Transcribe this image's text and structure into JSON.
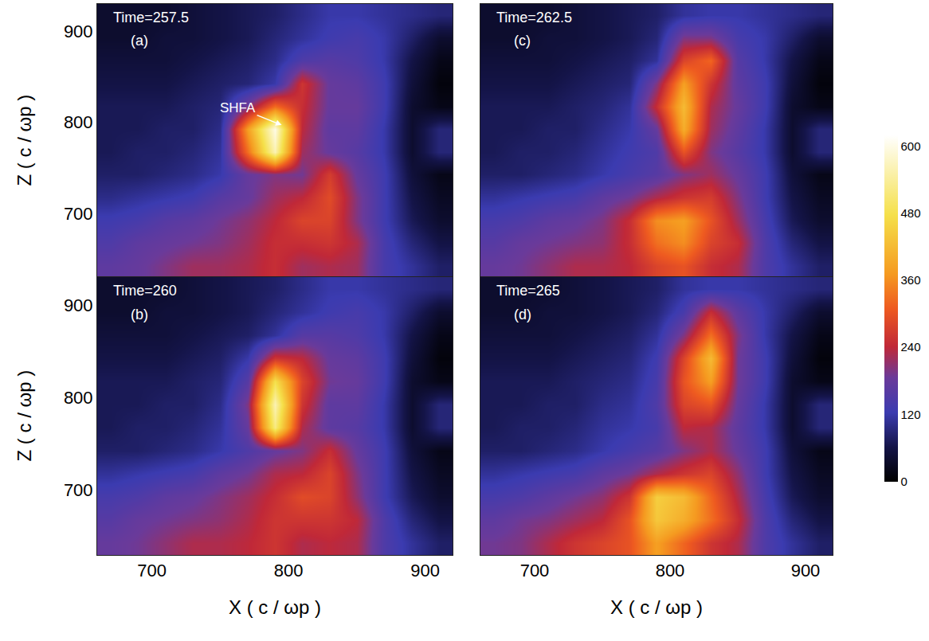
{
  "chart_data": [
    {
      "type": "heatmap",
      "title": "Time=257.5",
      "panel": "(a)",
      "ylabel": "Z ( c / ωp )",
      "tick_labels": "y",
      "x": [
        670,
        690,
        710,
        730,
        750,
        770,
        790,
        810,
        830,
        850,
        870,
        890,
        910
      ],
      "y": [
        642.5,
        667.5,
        692.5,
        717.5,
        742.5,
        767.5,
        792.5,
        817.5,
        842.5,
        867.5,
        892.5,
        917.5
      ],
      "xlim": [
        660,
        920
      ],
      "ylim": [
        630,
        930
      ],
      "xticks": [
        700,
        800,
        900
      ],
      "yticks": [
        700,
        800,
        900
      ],
      "color_range": [
        0,
        620
      ],
      "color_ticks": [
        0,
        120,
        240,
        360,
        480,
        600
      ],
      "annotations": [
        {
          "text": "SHFA",
          "x": 795,
          "y": 797
        }
      ],
      "z": [
        [
          170,
          180,
          200,
          220,
          220,
          230,
          250,
          220,
          230,
          220,
          140,
          110,
          80
        ],
        [
          150,
          170,
          180,
          190,
          200,
          220,
          250,
          250,
          260,
          230,
          140,
          90,
          60
        ],
        [
          130,
          140,
          160,
          170,
          190,
          210,
          240,
          280,
          280,
          200,
          130,
          70,
          40
        ],
        [
          100,
          110,
          120,
          130,
          160,
          180,
          220,
          240,
          290,
          200,
          130,
          60,
          30
        ],
        [
          80,
          80,
          90,
          100,
          120,
          180,
          200,
          190,
          270,
          180,
          130,
          50,
          20
        ],
        [
          70,
          80,
          80,
          90,
          110,
          330,
          560,
          220,
          180,
          160,
          120,
          40,
          90
        ],
        [
          70,
          70,
          80,
          80,
          100,
          380,
          600,
          240,
          170,
          170,
          120,
          40,
          90
        ],
        [
          70,
          70,
          70,
          80,
          90,
          200,
          330,
          250,
          180,
          180,
          130,
          40,
          20
        ],
        [
          60,
          60,
          60,
          70,
          80,
          90,
          120,
          260,
          180,
          170,
          130,
          50,
          10
        ],
        [
          50,
          50,
          50,
          60,
          70,
          80,
          100,
          150,
          160,
          150,
          120,
          60,
          20
        ],
        [
          40,
          40,
          50,
          50,
          60,
          70,
          90,
          110,
          130,
          140,
          120,
          80,
          40
        ],
        [
          40,
          40,
          40,
          50,
          60,
          70,
          80,
          100,
          120,
          120,
          110,
          100,
          90
        ]
      ]
    },
    {
      "type": "heatmap",
      "title": "Time=260",
      "panel": "(b)",
      "xlabel": "X ( c / ωp )",
      "ylabel": "Z ( c / ωp )",
      "tick_labels": true,
      "x": [
        670,
        690,
        710,
        730,
        750,
        770,
        790,
        810,
        830,
        850,
        870,
        890,
        910
      ],
      "y": [
        642.5,
        667.5,
        692.5,
        717.5,
        742.5,
        767.5,
        792.5,
        817.5,
        842.5,
        867.5,
        892.5,
        917.5
      ],
      "xlim": [
        660,
        920
      ],
      "ylim": [
        630,
        930
      ],
      "xticks": [
        700,
        800,
        900
      ],
      "yticks": [
        700,
        800,
        900
      ],
      "color_range": [
        0,
        620
      ],
      "z": [
        [
          180,
          190,
          210,
          230,
          230,
          240,
          260,
          230,
          240,
          230,
          150,
          110,
          80
        ],
        [
          160,
          180,
          190,
          200,
          210,
          230,
          260,
          260,
          260,
          240,
          150,
          90,
          60
        ],
        [
          140,
          150,
          170,
          180,
          200,
          220,
          250,
          290,
          280,
          210,
          130,
          70,
          40
        ],
        [
          110,
          120,
          130,
          140,
          170,
          190,
          230,
          240,
          280,
          200,
          130,
          60,
          30
        ],
        [
          80,
          80,
          90,
          100,
          120,
          150,
          180,
          200,
          250,
          180,
          130,
          50,
          20
        ],
        [
          70,
          80,
          80,
          90,
          110,
          180,
          520,
          230,
          170,
          160,
          120,
          40,
          90
        ],
        [
          70,
          70,
          80,
          80,
          100,
          200,
          560,
          260,
          170,
          170,
          120,
          40,
          90
        ],
        [
          70,
          70,
          70,
          80,
          90,
          160,
          480,
          280,
          190,
          180,
          130,
          40,
          20
        ],
        [
          60,
          60,
          60,
          70,
          80,
          120,
          260,
          240,
          180,
          170,
          130,
          50,
          10
        ],
        [
          50,
          50,
          50,
          60,
          70,
          80,
          110,
          160,
          160,
          150,
          120,
          60,
          20
        ],
        [
          40,
          40,
          50,
          50,
          60,
          70,
          90,
          110,
          130,
          140,
          120,
          80,
          40
        ],
        [
          40,
          40,
          40,
          50,
          60,
          70,
          80,
          100,
          120,
          120,
          110,
          100,
          90
        ]
      ]
    },
    {
      "type": "heatmap",
      "title": "Time=262.5",
      "panel": "(c)",
      "tick_labels": false,
      "x": [
        670,
        690,
        710,
        730,
        750,
        770,
        790,
        810,
        830,
        850,
        870,
        890,
        910
      ],
      "y": [
        642.5,
        667.5,
        692.5,
        717.5,
        742.5,
        767.5,
        792.5,
        817.5,
        842.5,
        867.5,
        892.5,
        917.5
      ],
      "xlim": [
        660,
        920
      ],
      "ylim": [
        630,
        930
      ],
      "xticks": [
        700,
        800,
        900
      ],
      "yticks": [
        700,
        800,
        900
      ],
      "color_range": [
        0,
        620
      ],
      "z": [
        [
          180,
          190,
          210,
          230,
          230,
          240,
          280,
          300,
          250,
          230,
          150,
          110,
          80
        ],
        [
          160,
          180,
          190,
          200,
          210,
          250,
          330,
          360,
          280,
          250,
          150,
          90,
          60
        ],
        [
          140,
          150,
          170,
          180,
          200,
          250,
          360,
          380,
          300,
          220,
          140,
          70,
          40
        ],
        [
          110,
          120,
          130,
          140,
          170,
          190,
          230,
          260,
          270,
          200,
          130,
          60,
          30
        ],
        [
          80,
          80,
          90,
          100,
          120,
          140,
          160,
          200,
          220,
          180,
          130,
          50,
          20
        ],
        [
          70,
          80,
          80,
          90,
          110,
          130,
          150,
          300,
          200,
          160,
          120,
          40,
          90
        ],
        [
          70,
          70,
          80,
          80,
          100,
          120,
          180,
          400,
          220,
          170,
          120,
          40,
          90
        ],
        [
          70,
          70,
          70,
          80,
          90,
          110,
          250,
          420,
          230,
          180,
          130,
          40,
          20
        ],
        [
          60,
          60,
          60,
          70,
          80,
          90,
          200,
          380,
          260,
          170,
          130,
          50,
          10
        ],
        [
          50,
          50,
          50,
          60,
          70,
          80,
          110,
          280,
          320,
          160,
          120,
          60,
          20
        ],
        [
          40,
          40,
          50,
          50,
          60,
          70,
          90,
          200,
          200,
          140,
          120,
          80,
          40
        ],
        [
          40,
          40,
          40,
          50,
          60,
          70,
          80,
          110,
          120,
          120,
          110,
          100,
          90
        ]
      ]
    },
    {
      "type": "heatmap",
      "title": "Time=265",
      "panel": "(d)",
      "xlabel": "X ( c / ωp )",
      "tick_labels": "x",
      "x": [
        670,
        690,
        710,
        730,
        750,
        770,
        790,
        810,
        830,
        850,
        870,
        890,
        910
      ],
      "y": [
        642.5,
        667.5,
        692.5,
        717.5,
        742.5,
        767.5,
        792.5,
        817.5,
        842.5,
        867.5,
        892.5,
        917.5
      ],
      "xlim": [
        660,
        920
      ],
      "ylim": [
        630,
        930
      ],
      "xticks": [
        700,
        800,
        900
      ],
      "yticks": [
        700,
        800,
        900
      ],
      "color_range": [
        0,
        620
      ],
      "z": [
        [
          190,
          200,
          230,
          260,
          280,
          300,
          380,
          320,
          260,
          230,
          150,
          110,
          80
        ],
        [
          170,
          190,
          200,
          220,
          240,
          300,
          440,
          400,
          330,
          250,
          150,
          90,
          60
        ],
        [
          140,
          150,
          170,
          190,
          210,
          260,
          450,
          420,
          320,
          230,
          140,
          70,
          40
        ],
        [
          110,
          120,
          130,
          140,
          170,
          190,
          230,
          260,
          280,
          210,
          130,
          60,
          30
        ],
        [
          80,
          80,
          90,
          100,
          120,
          140,
          160,
          200,
          230,
          180,
          130,
          50,
          20
        ],
        [
          70,
          80,
          80,
          90,
          110,
          120,
          140,
          240,
          230,
          170,
          120,
          40,
          90
        ],
        [
          70,
          70,
          80,
          80,
          100,
          110,
          150,
          280,
          300,
          180,
          120,
          40,
          90
        ],
        [
          70,
          70,
          70,
          80,
          90,
          100,
          140,
          300,
          380,
          190,
          130,
          40,
          20
        ],
        [
          60,
          60,
          60,
          70,
          80,
          90,
          130,
          280,
          420,
          190,
          130,
          50,
          10
        ],
        [
          50,
          50,
          50,
          60,
          70,
          80,
          110,
          200,
          330,
          200,
          120,
          60,
          20
        ],
        [
          40,
          40,
          50,
          50,
          60,
          70,
          90,
          140,
          250,
          170,
          120,
          80,
          40
        ],
        [
          40,
          40,
          40,
          50,
          60,
          70,
          80,
          110,
          120,
          120,
          110,
          100,
          90
        ]
      ]
    }
  ]
}
